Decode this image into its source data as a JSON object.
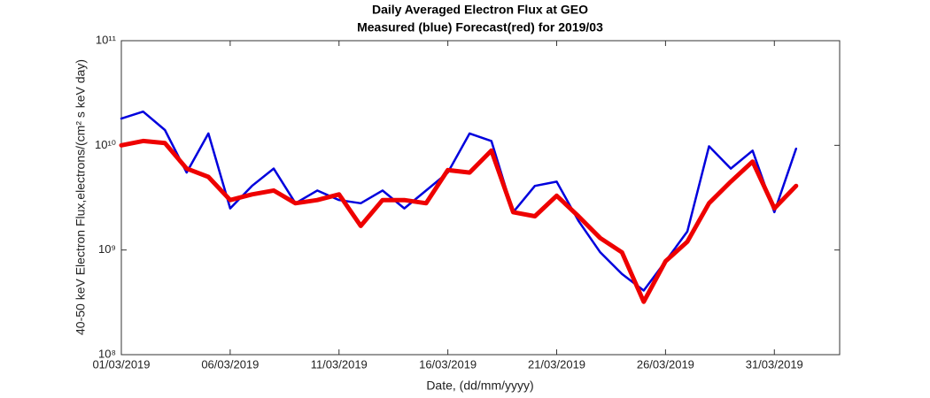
{
  "chart_data": {
    "type": "line",
    "title": "Daily Averaged Electron Flux at GEO",
    "subtitle": "Measured (blue) Forecast(red) for 2019/03",
    "x_label": "Date, (dd/mm/yyyy)",
    "y_label": "40-50 keV Electron Flux,electrons/(cm² s keV day)",
    "x": [
      "01/03/2019",
      "02/03/2019",
      "03/03/2019",
      "04/03/2019",
      "05/03/2019",
      "06/03/2019",
      "07/03/2019",
      "08/03/2019",
      "09/03/2019",
      "10/03/2019",
      "11/03/2019",
      "12/03/2019",
      "13/03/2019",
      "14/03/2019",
      "15/03/2019",
      "16/03/2019",
      "17/03/2019",
      "18/03/2019",
      "19/03/2019",
      "20/03/2019",
      "21/03/2019",
      "22/03/2019",
      "23/03/2019",
      "24/03/2019",
      "25/03/2019",
      "26/03/2019",
      "27/03/2019",
      "28/03/2019",
      "29/03/2019",
      "30/03/2019",
      "31/03/2019",
      "01/04/2019"
    ],
    "series": [
      {
        "name": "Measured",
        "color": "#0000dd",
        "values": [
          18000000000.0,
          21000000000.0,
          14000000000.0,
          5500000000.0,
          13000000000.0,
          2500000000.0,
          4100000000.0,
          6000000000.0,
          2800000000.0,
          3700000000.0,
          3000000000.0,
          2800000000.0,
          3700000000.0,
          2500000000.0,
          3700000000.0,
          5500000000.0,
          13000000000.0,
          11000000000.0,
          2300000000.0,
          4100000000.0,
          4500000000.0,
          1900000000.0,
          950000000.0,
          590000000.0,
          410000000.0,
          780000000.0,
          1500000000.0,
          9800000000.0,
          6000000000.0,
          8900000000.0,
          2300000000.0,
          9300000000.0
        ]
      },
      {
        "name": "Forecast",
        "color": "#ee0000",
        "values": [
          10000000000.0,
          11000000000.0,
          10500000000.0,
          6000000000.0,
          5000000000.0,
          3000000000.0,
          3400000000.0,
          3700000000.0,
          2800000000.0,
          3000000000.0,
          3400000000.0,
          1700000000.0,
          3000000000.0,
          3000000000.0,
          2800000000.0,
          5800000000.0,
          5500000000.0,
          8900000000.0,
          2300000000.0,
          2100000000.0,
          3300000000.0,
          2100000000.0,
          1300000000.0,
          950000000.0,
          320000000.0,
          780000000.0,
          1200000000.0,
          2800000000.0,
          4500000000.0,
          7000000000.0,
          2500000000.0,
          4100000000.0
        ]
      }
    ],
    "xlim": [
      "01/03/2019",
      "03/04/2019"
    ],
    "xticks": [
      "01/03/2019",
      "06/03/2019",
      "11/03/2019",
      "16/03/2019",
      "21/03/2019",
      "26/03/2019",
      "31/03/2019"
    ],
    "ylim": [
      100000000.0,
      100000000000.0
    ],
    "yticks": [
      {
        "value": 100000000.0,
        "label": "10⁸"
      },
      {
        "value": 1000000000.0,
        "label": "10⁹"
      },
      {
        "value": 10000000000.0,
        "label": "10¹⁰"
      },
      {
        "value": 100000000000.0,
        "label": "10¹¹"
      }
    ],
    "y_scale": "log",
    "grid": false
  }
}
